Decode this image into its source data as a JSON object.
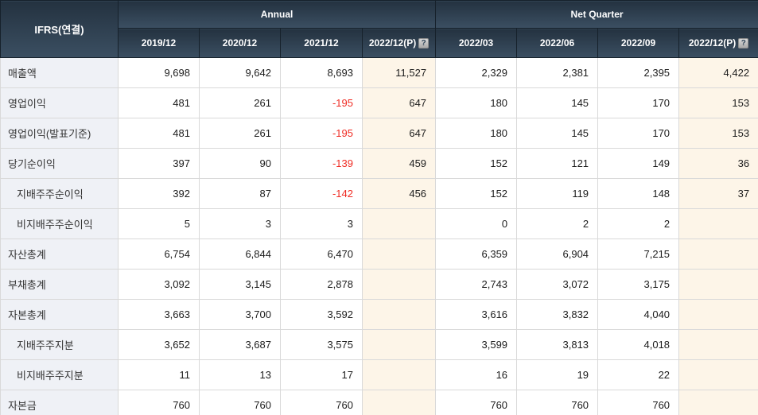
{
  "table": {
    "corner_label": "IFRS(연결)",
    "groups": [
      {
        "label": "Annual",
        "span": 4
      },
      {
        "label": "Net Quarter",
        "span": 4
      }
    ],
    "help_icon": "?",
    "columns": [
      {
        "label": "2019/12",
        "highlight": false,
        "help": false
      },
      {
        "label": "2020/12",
        "highlight": false,
        "help": false
      },
      {
        "label": "2021/12",
        "highlight": false,
        "help": false
      },
      {
        "label": "2022/12(P)",
        "highlight": true,
        "help": true
      },
      {
        "label": "2022/03",
        "highlight": false,
        "help": false
      },
      {
        "label": "2022/06",
        "highlight": false,
        "help": false
      },
      {
        "label": "2022/09",
        "highlight": false,
        "help": false
      },
      {
        "label": "2022/12(P)",
        "highlight": true,
        "help": true
      }
    ],
    "rows": [
      {
        "label": "매출액",
        "indent": false,
        "values": [
          "9,698",
          "9,642",
          "8,693",
          "11,527",
          "2,329",
          "2,381",
          "2,395",
          "4,422"
        ]
      },
      {
        "label": "영업이익",
        "indent": false,
        "values": [
          "481",
          "261",
          "-195",
          "647",
          "180",
          "145",
          "170",
          "153"
        ]
      },
      {
        "label": "영업이익(발표기준)",
        "indent": false,
        "values": [
          "481",
          "261",
          "-195",
          "647",
          "180",
          "145",
          "170",
          "153"
        ]
      },
      {
        "label": "당기순이익",
        "indent": false,
        "values": [
          "397",
          "90",
          "-139",
          "459",
          "152",
          "121",
          "149",
          "36"
        ]
      },
      {
        "label": "지배주주순이익",
        "indent": true,
        "values": [
          "392",
          "87",
          "-142",
          "456",
          "152",
          "119",
          "148",
          "37"
        ]
      },
      {
        "label": "비지배주주순이익",
        "indent": true,
        "values": [
          "5",
          "3",
          "3",
          "",
          "0",
          "2",
          "2",
          ""
        ]
      },
      {
        "label": "자산총계",
        "indent": false,
        "values": [
          "6,754",
          "6,844",
          "6,470",
          "",
          "6,359",
          "6,904",
          "7,215",
          ""
        ]
      },
      {
        "label": "부채총계",
        "indent": false,
        "values": [
          "3,092",
          "3,145",
          "2,878",
          "",
          "2,743",
          "3,072",
          "3,175",
          ""
        ]
      },
      {
        "label": "자본총계",
        "indent": false,
        "values": [
          "3,663",
          "3,700",
          "3,592",
          "",
          "3,616",
          "3,832",
          "4,040",
          ""
        ]
      },
      {
        "label": "지배주주지분",
        "indent": true,
        "values": [
          "3,652",
          "3,687",
          "3,575",
          "",
          "3,599",
          "3,813",
          "4,018",
          ""
        ]
      },
      {
        "label": "비지배주주지분",
        "indent": true,
        "values": [
          "11",
          "13",
          "17",
          "",
          "16",
          "19",
          "22",
          ""
        ]
      },
      {
        "label": "자본금",
        "indent": false,
        "values": [
          "760",
          "760",
          "760",
          "",
          "760",
          "760",
          "760",
          ""
        ]
      }
    ],
    "colors": {
      "header_bg_top": "#243240",
      "header_bg_bottom": "#3b4f62",
      "header_text": "#ffffff",
      "label_bg": "#eff1f6",
      "highlight_bg": "#fdf5e8",
      "body_border": "#d9d9d9",
      "negative": "#ef2b23"
    }
  }
}
